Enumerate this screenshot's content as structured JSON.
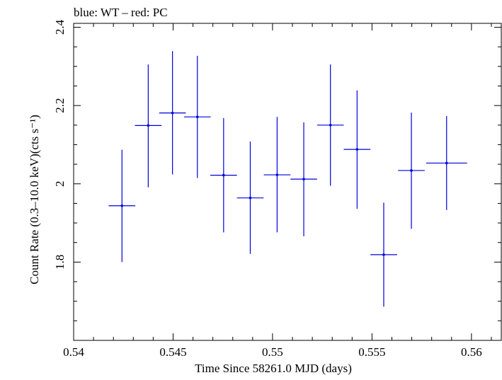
{
  "chart_data": {
    "type": "scatter",
    "title": "blue: WT – red: PC",
    "xlabel": "Time Since 58261.0 MJD (days)",
    "ylabel": "Count Rate (0.3–10.0 keV)(cts s⁻¹)",
    "xlim": [
      0.54,
      0.5615
    ],
    "ylim": [
      1.6,
      2.41
    ],
    "x_ticks": [
      0.54,
      0.545,
      0.55,
      0.555,
      0.56
    ],
    "x_tick_labels": [
      "0.54",
      "0.545",
      "0.55",
      "0.555",
      "0.56"
    ],
    "y_ticks": [
      1.8,
      2.0,
      2.2,
      2.4
    ],
    "y_tick_labels": [
      "1.8",
      "2",
      "2.2",
      "2.4"
    ],
    "grid": false,
    "series": [
      {
        "color": "#0000dd",
        "points": [
          {
            "x": 0.54243,
            "y": 1.944,
            "xerr": 0.00067,
            "ylo": 1.8,
            "yhi": 2.087
          },
          {
            "x": 0.54375,
            "y": 2.149,
            "xerr": 0.00067,
            "ylo": 1.991,
            "yhi": 2.305
          },
          {
            "x": 0.54497,
            "y": 2.181,
            "xerr": 0.00067,
            "ylo": 2.024,
            "yhi": 2.339
          },
          {
            "x": 0.54622,
            "y": 2.171,
            "xerr": 0.00067,
            "ylo": 2.015,
            "yhi": 2.327
          },
          {
            "x": 0.54754,
            "y": 2.022,
            "xerr": 0.00067,
            "ylo": 1.876,
            "yhi": 2.168
          },
          {
            "x": 0.54888,
            "y": 1.964,
            "xerr": 0.00067,
            "ylo": 1.821,
            "yhi": 2.108
          },
          {
            "x": 0.55023,
            "y": 2.023,
            "xerr": 0.00067,
            "ylo": 1.876,
            "yhi": 2.171
          },
          {
            "x": 0.55157,
            "y": 2.012,
            "xerr": 0.00067,
            "ylo": 1.866,
            "yhi": 2.157
          },
          {
            "x": 0.55291,
            "y": 2.15,
            "xerr": 0.00067,
            "ylo": 1.995,
            "yhi": 2.305
          },
          {
            "x": 0.55425,
            "y": 2.088,
            "xerr": 0.00067,
            "ylo": 1.936,
            "yhi": 2.239
          },
          {
            "x": 0.55559,
            "y": 1.819,
            "xerr": 0.00067,
            "ylo": 1.686,
            "yhi": 1.952
          },
          {
            "x": 0.55698,
            "y": 2.034,
            "xerr": 0.00067,
            "ylo": 1.885,
            "yhi": 2.182
          },
          {
            "x": 0.55875,
            "y": 2.053,
            "xerr": 0.00103,
            "ylo": 1.933,
            "yhi": 2.173
          }
        ]
      }
    ]
  }
}
